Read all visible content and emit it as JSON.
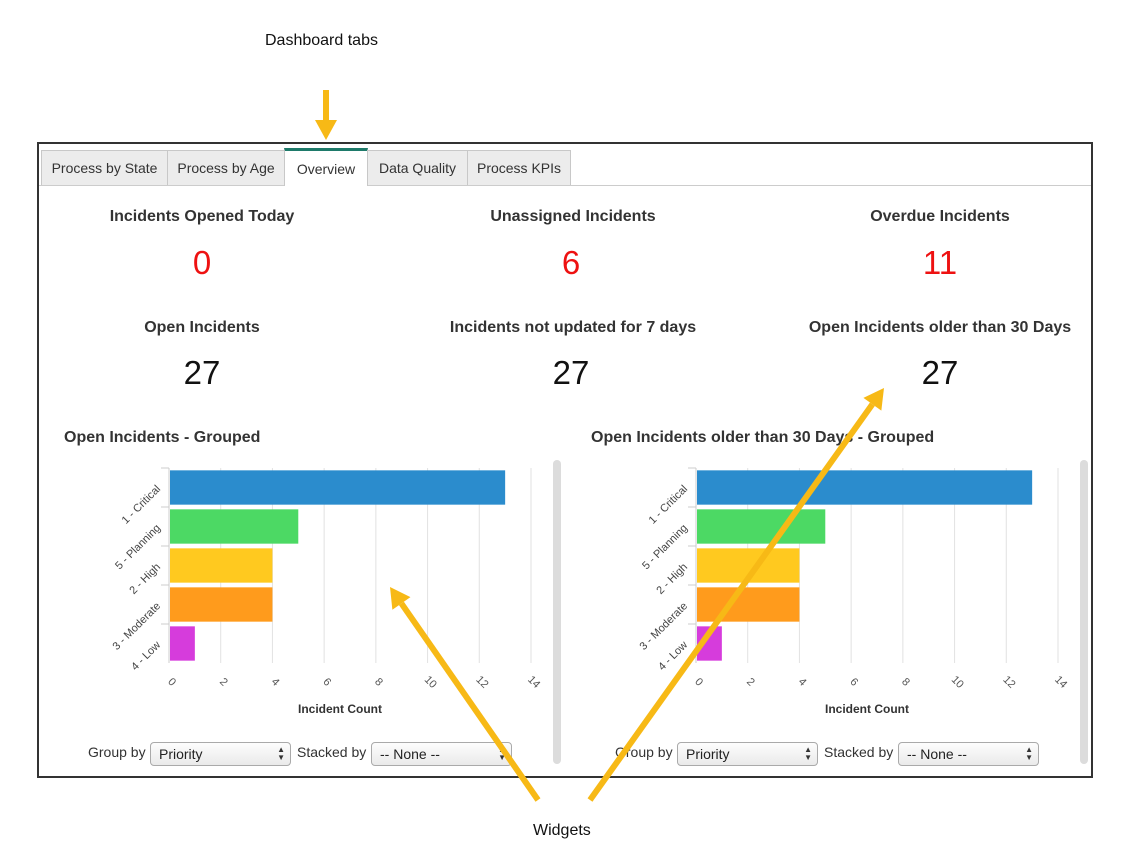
{
  "annotations": {
    "dashboard_tabs": "Dashboard tabs",
    "widgets": "Widgets"
  },
  "tabs": [
    {
      "label": "Process by State"
    },
    {
      "label": "Process by Age"
    },
    {
      "label": "Overview",
      "active": true
    },
    {
      "label": "Data Quality"
    },
    {
      "label": "Process KPIs"
    }
  ],
  "kpis": [
    {
      "title": "Incidents Opened Today",
      "value": "0",
      "color": "#ee1111"
    },
    {
      "title": "Unassigned Incidents",
      "value": "6",
      "color": "#ee1111"
    },
    {
      "title": "Overdue Incidents",
      "value": "11",
      "color": "#ee1111"
    },
    {
      "title": "Open Incidents",
      "value": "27",
      "color": "#111111"
    },
    {
      "title": "Incidents not updated for 7 days",
      "value": "27",
      "color": "#111111"
    },
    {
      "title": "Open Incidents older than 30 Days",
      "value": "27",
      "color": "#111111"
    }
  ],
  "widgets": [
    {
      "title": "Open Incidents - Grouped",
      "group_by_label": "Group by",
      "group_by_value": "Priority",
      "stacked_by_label": "Stacked by",
      "stacked_by_value": "-- None --"
    },
    {
      "title": "Open Incidents older than 30 Days - Grouped",
      "group_by_label": "Group by",
      "group_by_value": "Priority",
      "stacked_by_label": "Stacked by",
      "stacked_by_value": "-- None --"
    }
  ],
  "chart_data": [
    {
      "type": "bar",
      "orientation": "horizontal",
      "categories": [
        "1 - Critical",
        "5 - Planning",
        "2 - High",
        "3 - Moderate",
        "4 - Low"
      ],
      "values": [
        13,
        5,
        4,
        4,
        1
      ],
      "colors": [
        "#2b8ccd",
        "#4cd964",
        "#ffc91f",
        "#ff9b1c",
        "#d63cdc"
      ],
      "xlabel": "Incident Count",
      "xlim": [
        0,
        14
      ],
      "xticks": [
        "0",
        "2",
        "4",
        "6",
        "8",
        "10",
        "12",
        "14"
      ],
      "grid": true
    },
    {
      "type": "bar",
      "orientation": "horizontal",
      "categories": [
        "1 - Critical",
        "5 - Planning",
        "2 - High",
        "3 - Moderate",
        "4 - Low"
      ],
      "values": [
        13,
        5,
        4,
        4,
        1
      ],
      "colors": [
        "#2b8ccd",
        "#4cd964",
        "#ffc91f",
        "#ff9b1c",
        "#d63cdc"
      ],
      "xlabel": "Incident Count",
      "xlim": [
        0,
        14
      ],
      "xticks": [
        "0",
        "2",
        "4",
        "6",
        "8",
        "10",
        "12",
        "14"
      ],
      "grid": true
    }
  ],
  "accent_color": "#1e7a6a",
  "arrow_color": "#f7b916"
}
